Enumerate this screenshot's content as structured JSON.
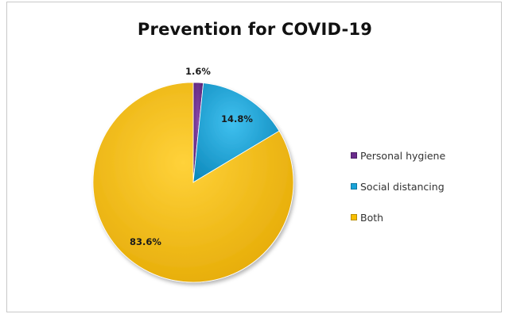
{
  "chart_data": {
    "type": "pie",
    "title": "Prevention for COVID-19",
    "categories": [
      "Personal hygiene",
      "Social distancing",
      "Both"
    ],
    "values": [
      1.6,
      14.8,
      83.6
    ],
    "labels": [
      "1.6%",
      "14.8%",
      "83.6%"
    ],
    "colors": [
      "#6a2c8c",
      "#1aa3d8",
      "#f7be00"
    ],
    "legend_position": "right",
    "start_angle": "top-center, clockwise"
  }
}
